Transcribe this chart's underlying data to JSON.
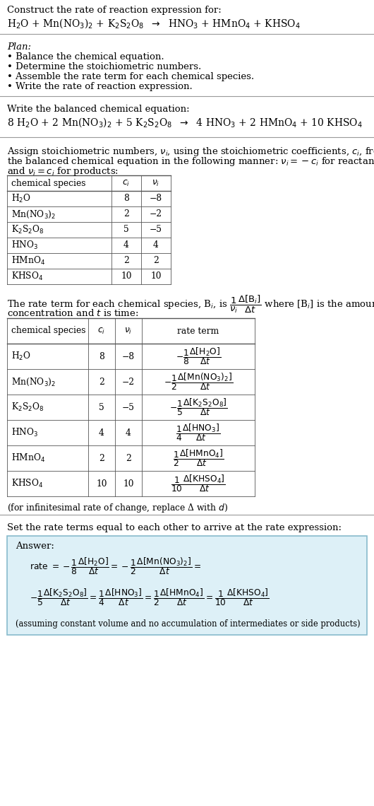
{
  "bg_color": "#ffffff",
  "text_color": "#000000",
  "font_family": "DejaVu Serif",
  "title_line1": "Construct the rate of reaction expression for:",
  "plan_header": "Plan:",
  "plan_items": [
    "• Balance the chemical equation.",
    "• Determine the stoichiometric numbers.",
    "• Assemble the rate term for each chemical species.",
    "• Write the rate of reaction expression."
  ],
  "balanced_header": "Write the balanced chemical equation:",
  "assign_text1": "Assign stoichiometric numbers, $\\nu_i$, using the stoichiometric coefficients, $c_i$, from",
  "assign_text2": "the balanced chemical equation in the following manner: $\\nu_i = -c_i$ for reactants",
  "assign_text3": "and $\\nu_i = c_i$ for products:",
  "table1_headers": [
    "chemical species",
    "$c_i$",
    "$\\nu_i$"
  ],
  "table1_species": [
    "H$_2$O",
    "Mn(NO$_3$)$_2$",
    "K$_2$S$_2$O$_8$",
    "HNO$_3$",
    "HMnO$_4$",
    "KHSO$_4$"
  ],
  "table1_ci": [
    "8",
    "2",
    "5",
    "4",
    "2",
    "10"
  ],
  "table1_vi": [
    "−8",
    "−2",
    "−5",
    "4",
    "2",
    "10"
  ],
  "rate_text2": "concentration and $t$ is time:",
  "table2_headers": [
    "chemical species",
    "$c_i$",
    "$\\nu_i$",
    "rate term"
  ],
  "table2_species": [
    "H$_2$O",
    "Mn(NO$_3$)$_2$",
    "K$_2$S$_2$O$_8$",
    "HNO$_3$",
    "HMnO$_4$",
    "KHSO$_4$"
  ],
  "table2_ci": [
    "8",
    "2",
    "5",
    "4",
    "2",
    "10"
  ],
  "table2_vi": [
    "−8",
    "−2",
    "−5",
    "4",
    "2",
    "10"
  ],
  "infinitesimal_note": "(for infinitesimal rate of change, replace Δ with $d$)",
  "set_rate_text": "Set the rate terms equal to each other to arrive at the rate expression:",
  "answer_box_color": "#ddf0f7",
  "answer_border_color": "#88bbcc",
  "answer_label": "Answer:",
  "answer_note": "(assuming constant volume and no accumulation of intermediates or side products)"
}
